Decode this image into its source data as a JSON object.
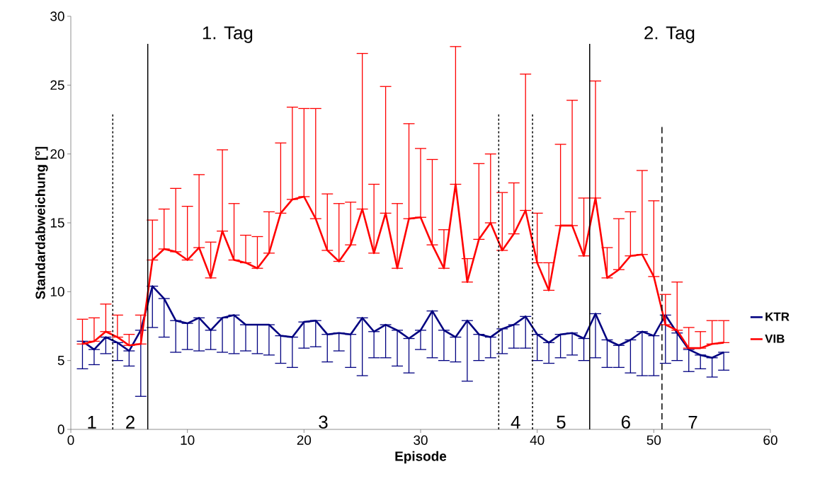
{
  "chart_data": {
    "type": "line",
    "xlabel": "Episode",
    "ylabel": "Standardabweichung [°]",
    "x": [
      1,
      2,
      3,
      4,
      5,
      6,
      7,
      8,
      9,
      10,
      11,
      12,
      13,
      14,
      15,
      16,
      17,
      18,
      19,
      20,
      21,
      22,
      23,
      24,
      25,
      26,
      27,
      28,
      29,
      30,
      31,
      32,
      33,
      34,
      35,
      36,
      37,
      38,
      39,
      40,
      41,
      42,
      43,
      44,
      45,
      46,
      47,
      48,
      49,
      50,
      51,
      52,
      53,
      54,
      55,
      56
    ],
    "series": [
      {
        "name": "KTR",
        "color": "#000080",
        "values": [
          6.4,
          5.8,
          6.7,
          6.3,
          5.7,
          7.2,
          10.4,
          9.5,
          7.9,
          7.7,
          8.1,
          7.2,
          8.1,
          8.3,
          7.6,
          7.6,
          7.6,
          6.8,
          6.7,
          7.8,
          7.9,
          6.9,
          7.0,
          6.9,
          8.1,
          7.1,
          7.6,
          7.2,
          6.6,
          7.2,
          8.6,
          7.2,
          6.7,
          7.9,
          6.9,
          6.7,
          7.3,
          7.6,
          8.2,
          6.9,
          6.3,
          6.9,
          7.0,
          6.6,
          8.4,
          6.5,
          6.1,
          6.5,
          7.1,
          6.8,
          8.3,
          7.0,
          5.8,
          5.4,
          5.2,
          5.6
        ],
        "errors": [
          [
            4.4,
            6.4
          ],
          [
            4.7,
            5.8
          ],
          [
            5.5,
            6.7
          ],
          [
            5.0,
            6.3
          ],
          [
            4.6,
            5.7
          ],
          [
            2.4,
            7.2
          ],
          [
            7.4,
            10.4
          ],
          [
            6.7,
            9.5
          ],
          [
            5.6,
            7.9
          ],
          [
            5.8,
            7.7
          ],
          [
            5.7,
            8.1
          ],
          [
            5.8,
            7.2
          ],
          [
            5.6,
            8.1
          ],
          [
            5.5,
            8.3
          ],
          [
            5.7,
            7.6
          ],
          [
            5.5,
            7.6
          ],
          [
            5.4,
            7.6
          ],
          [
            4.8,
            6.8
          ],
          [
            4.5,
            6.7
          ],
          [
            5.9,
            7.8
          ],
          [
            6.0,
            7.9
          ],
          [
            4.9,
            6.9
          ],
          [
            5.7,
            7.0
          ],
          [
            4.5,
            6.9
          ],
          [
            3.9,
            8.1
          ],
          [
            5.2,
            7.1
          ],
          [
            5.2,
            7.6
          ],
          [
            4.6,
            7.2
          ],
          [
            4.1,
            6.6
          ],
          [
            5.8,
            7.2
          ],
          [
            5.2,
            8.6
          ],
          [
            5.0,
            7.2
          ],
          [
            4.9,
            6.7
          ],
          [
            3.5,
            7.9
          ],
          [
            5.0,
            6.9
          ],
          [
            5.2,
            6.7
          ],
          [
            5.5,
            7.3
          ],
          [
            5.9,
            7.6
          ],
          [
            5.9,
            8.2
          ],
          [
            5.0,
            6.9
          ],
          [
            4.8,
            6.3
          ],
          [
            5.2,
            6.9
          ],
          [
            5.4,
            7.0
          ],
          [
            5.0,
            6.6
          ],
          [
            5.2,
            8.4
          ],
          [
            4.5,
            6.5
          ],
          [
            4.5,
            6.1
          ],
          [
            4.1,
            6.5
          ],
          [
            3.9,
            7.1
          ],
          [
            3.9,
            6.8
          ],
          [
            4.8,
            8.3
          ],
          [
            5.0,
            7.0
          ],
          [
            4.2,
            5.8
          ],
          [
            4.4,
            5.4
          ],
          [
            3.8,
            5.2
          ],
          [
            4.3,
            5.6
          ]
        ]
      },
      {
        "name": "VIB",
        "color": "#ff0000",
        "values": [
          6.2,
          6.4,
          7.1,
          6.7,
          6.1,
          6.2,
          12.3,
          13.1,
          12.9,
          12.3,
          13.2,
          11.0,
          14.4,
          12.3,
          12.1,
          11.7,
          12.8,
          15.7,
          16.7,
          16.9,
          15.3,
          13.0,
          12.2,
          13.4,
          16.0,
          12.8,
          15.7,
          11.7,
          15.3,
          15.4,
          13.4,
          11.7,
          17.8,
          10.7,
          13.8,
          15.0,
          13.0,
          14.2,
          15.9,
          12.1,
          10.1,
          14.8,
          14.8,
          12.6,
          16.8,
          11.0,
          11.6,
          12.6,
          12.7,
          11.1,
          7.6,
          7.2,
          5.9,
          5.9,
          6.2,
          6.3
        ],
        "errors": [
          [
            6.2,
            8.0
          ],
          [
            6.4,
            8.1
          ],
          [
            7.1,
            9.1
          ],
          [
            6.7,
            8.3
          ],
          [
            6.1,
            6.9
          ],
          [
            6.2,
            8.3
          ],
          [
            12.3,
            15.2
          ],
          [
            13.1,
            16.0
          ],
          [
            12.9,
            17.5
          ],
          [
            12.3,
            16.2
          ],
          [
            13.2,
            18.5
          ],
          [
            11.0,
            13.6
          ],
          [
            14.4,
            20.3
          ],
          [
            12.3,
            16.4
          ],
          [
            12.1,
            14.1
          ],
          [
            11.7,
            14.0
          ],
          [
            12.8,
            15.8
          ],
          [
            15.7,
            20.8
          ],
          [
            16.7,
            23.4
          ],
          [
            16.9,
            23.3
          ],
          [
            15.3,
            23.3
          ],
          [
            13.0,
            17.1
          ],
          [
            12.2,
            16.4
          ],
          [
            13.4,
            16.5
          ],
          [
            16.0,
            27.3
          ],
          [
            12.8,
            17.8
          ],
          [
            15.7,
            24.9
          ],
          [
            11.7,
            16.4
          ],
          [
            15.3,
            22.2
          ],
          [
            15.4,
            20.4
          ],
          [
            13.4,
            19.6
          ],
          [
            11.7,
            14.5
          ],
          [
            17.8,
            27.8
          ],
          [
            10.7,
            12.4
          ],
          [
            13.8,
            19.3
          ],
          [
            15.0,
            20.0
          ],
          [
            13.0,
            17.2
          ],
          [
            14.2,
            17.9
          ],
          [
            15.9,
            25.8
          ],
          [
            12.1,
            15.7
          ],
          [
            10.1,
            12.1
          ],
          [
            14.8,
            20.7
          ],
          [
            14.8,
            23.9
          ],
          [
            12.6,
            16.8
          ],
          [
            16.8,
            25.3
          ],
          [
            11.0,
            13.2
          ],
          [
            11.6,
            15.3
          ],
          [
            12.6,
            15.8
          ],
          [
            12.7,
            18.8
          ],
          [
            11.1,
            16.6
          ],
          [
            7.6,
            9.8
          ],
          [
            7.2,
            10.7
          ],
          [
            5.9,
            7.4
          ],
          [
            5.9,
            7.1
          ],
          [
            6.2,
            7.9
          ],
          [
            6.3,
            7.9
          ]
        ]
      }
    ],
    "xlim": [
      0,
      60
    ],
    "ylim": [
      0,
      30
    ],
    "xticks": [
      0,
      10,
      20,
      30,
      40,
      50,
      60
    ],
    "yticks": [
      0,
      5,
      10,
      15,
      20,
      25,
      30
    ],
    "grid": false,
    "legend": "right",
    "marker": "none",
    "line_style": "solid",
    "ref_lines": [
      {
        "axis": "x",
        "value": 3.6,
        "line_style": "dotted"
      },
      {
        "axis": "x",
        "value": 6.6,
        "line_style": "solid"
      },
      {
        "axis": "x",
        "value": 36.7,
        "line_style": "dotted"
      },
      {
        "axis": "x",
        "value": 39.6,
        "line_style": "dotted"
      },
      {
        "axis": "x",
        "value": 44.5,
        "line_style": "solid"
      },
      {
        "axis": "x",
        "value": 50.7,
        "line_style": "dashed"
      }
    ],
    "annotations": [
      "1. Tag",
      "2. Tag",
      "1",
      "2",
      "3",
      "4",
      "5",
      "6",
      "7"
    ]
  }
}
